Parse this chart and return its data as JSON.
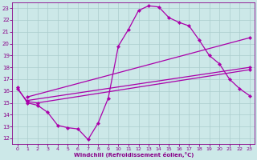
{
  "bg_color": "#cce8e8",
  "line_color": "#aa00aa",
  "grid_color": "#aacccc",
  "xlabel": "Windchill (Refroidissement éolien,°C)",
  "xlabel_color": "#880088",
  "tick_color": "#880088",
  "xlim": [
    -0.5,
    23.5
  ],
  "ylim": [
    11.5,
    23.5
  ],
  "yticks": [
    12,
    13,
    14,
    15,
    16,
    17,
    18,
    19,
    20,
    21,
    22,
    23
  ],
  "xticks": [
    0,
    1,
    2,
    3,
    4,
    5,
    6,
    7,
    8,
    9,
    10,
    11,
    12,
    13,
    14,
    15,
    16,
    17,
    18,
    19,
    20,
    21,
    22,
    23
  ],
  "line1_x": [
    0,
    1,
    2,
    3,
    4,
    5,
    6,
    7,
    8,
    9,
    10,
    11,
    12,
    13,
    14,
    15,
    16,
    17,
    18,
    19,
    20,
    21,
    22,
    23
  ],
  "line1_y": [
    16.3,
    15.0,
    14.8,
    14.2,
    13.1,
    12.9,
    12.8,
    11.9,
    13.3,
    15.4,
    19.8,
    21.2,
    22.8,
    23.2,
    23.1,
    22.2,
    21.8,
    21.5,
    20.3,
    19.0,
    18.3,
    17.0,
    16.2,
    15.6
  ],
  "line2_x": [
    1,
    23
  ],
  "line2_y": [
    15.2,
    18.0
  ],
  "line3_x": [
    1,
    23
  ],
  "line3_y": [
    15.5,
    20.5
  ],
  "line4_x": [
    0,
    1,
    2,
    23
  ],
  "line4_y": [
    16.2,
    15.1,
    15.0,
    17.8
  ],
  "marker": "D",
  "markersize": 2.2,
  "linewidth": 0.9
}
